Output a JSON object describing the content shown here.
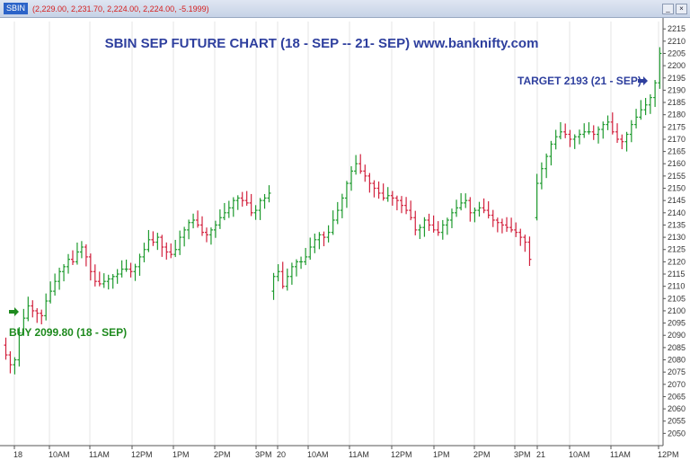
{
  "window": {
    "symbol": "SBIN",
    "quote": "(2,229.00, 2,231.70, 2,224.00, 2,224.00, -5.1999)"
  },
  "chart_data": {
    "type": "ohlc",
    "title": "SBIN SEP FUTURE CHART (18 - SEP -- 21- SEP) www.banknifty.com",
    "ylim": [
      2045,
      2218
    ],
    "y_ticks": [
      2050,
      2055,
      2060,
      2065,
      2070,
      2075,
      2080,
      2085,
      2090,
      2095,
      2100,
      2105,
      2110,
      2115,
      2120,
      2125,
      2130,
      2135,
      2140,
      2145,
      2150,
      2155,
      2160,
      2165,
      2170,
      2175,
      2180,
      2185,
      2190,
      2195,
      2200,
      2205,
      2210,
      2215
    ],
    "x_ticks": [
      "18",
      "10AM",
      "11AM",
      "12PM",
      "1PM",
      "2PM",
      "3PM",
      "20",
      "10AM",
      "11AM",
      "12PM",
      "1PM",
      "2PM",
      "3PM",
      "21",
      "10AM",
      "11AM",
      "12PM"
    ],
    "grid": true,
    "sessions": [
      {
        "label": "18",
        "closes": [
          2082,
          2078,
          2080,
          2091,
          2097,
          2102,
          2100,
          2099,
          2098,
          2104,
          2108,
          2112,
          2116,
          2118,
          2121,
          2120,
          2124,
          2126,
          2122,
          2116,
          2112,
          2111,
          2112,
          2113,
          2114,
          2115,
          2117,
          2117,
          2116,
          2118,
          2122,
          2125,
          2129,
          2128,
          2130,
          2126,
          2124,
          2123,
          2125,
          2130,
          2133,
          2136,
          2137,
          2135,
          2132,
          2131,
          2133,
          2135,
          2138,
          2140,
          2142,
          2145,
          2146,
          2145,
          2144,
          2140,
          2141,
          2145,
          2146,
          2148
        ]
      },
      {
        "label": "20",
        "closes": [
          2114,
          2116,
          2110,
          2114,
          2118,
          2120,
          2120,
          2122,
          2126,
          2129,
          2131,
          2130,
          2132,
          2137,
          2141,
          2146,
          2152,
          2157,
          2160,
          2157,
          2155,
          2152,
          2150,
          2148,
          2146,
          2147,
          2146,
          2145,
          2143,
          2141,
          2138,
          2133,
          2134,
          2137,
          2135,
          2133,
          2132,
          2135,
          2137,
          2140,
          2142,
          2144,
          2145,
          2140,
          2141,
          2142,
          2141,
          2139,
          2137,
          2136,
          2135,
          2134,
          2133,
          2132,
          2130,
          2128,
          2121
        ]
      },
      {
        "label": "21",
        "closes": [
          2152,
          2158,
          2163,
          2168,
          2171,
          2173,
          2172,
          2170,
          2171,
          2172,
          2173,
          2173,
          2172,
          2174,
          2176,
          2177,
          2173,
          2170,
          2169,
          2172,
          2176,
          2179,
          2182,
          2184,
          2187,
          2193,
          2205
        ]
      }
    ],
    "annotations": {
      "buy": "BUY  2099.80 (18 - SEP)",
      "target": "TARGET  2193 (21 - SEP)"
    },
    "colors": {
      "up": "#1e9a2e",
      "down": "#d2213d",
      "title": "#2e3f9e",
      "buy": "#1e8a1e",
      "target": "#2e3f9e",
      "arrow_buy": "#1e8a1e",
      "arrow_target": "#2e3f9e"
    }
  }
}
